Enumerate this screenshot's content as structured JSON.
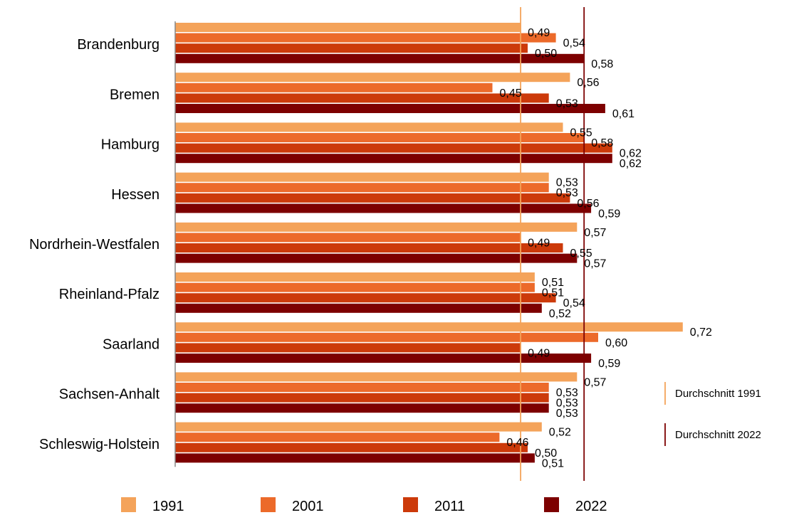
{
  "chart_data": {
    "type": "bar",
    "orientation": "horizontal",
    "categories": [
      "Brandenburg",
      "Bremen",
      "Hamburg",
      "Hessen",
      "Nordrhein-Westfalen",
      "Rheinland-Pfalz",
      "Saarland",
      "Sachsen-Anhalt",
      "Schleswig-Holstein"
    ],
    "series": [
      {
        "name": "1991",
        "color": "#f4a35a",
        "values": [
          0.49,
          0.56,
          0.55,
          0.53,
          0.57,
          0.51,
          0.72,
          0.57,
          0.52
        ],
        "labels": [
          "0,49",
          "0,56",
          "0,55",
          "0,53",
          "0,57",
          "0,51",
          "0,72",
          "0,57",
          "0,52"
        ]
      },
      {
        "name": "2001",
        "color": "#ec6a2a",
        "values": [
          0.54,
          0.45,
          0.58,
          0.53,
          0.49,
          0.51,
          0.6,
          0.53,
          0.46
        ],
        "labels": [
          "0,54",
          "0,45",
          "0,58",
          "0,53",
          "0,49",
          "0,51",
          "0,60",
          "0,53",
          "0,46"
        ]
      },
      {
        "name": "2011",
        "color": "#cc3a0a",
        "values": [
          0.5,
          0.53,
          0.62,
          0.56,
          0.55,
          0.54,
          0.49,
          0.53,
          0.5
        ],
        "labels": [
          "0,50",
          "0,53",
          "0,62",
          "0,56",
          "0,55",
          "0,54",
          "0,49",
          "0,53",
          "0,50"
        ]
      },
      {
        "name": "2022",
        "color": "#7d0000",
        "values": [
          0.58,
          0.61,
          0.62,
          0.59,
          0.57,
          0.52,
          0.59,
          0.53,
          0.51
        ],
        "labels": [
          "0,58",
          "0,61",
          "0,62",
          "0,59",
          "0,57",
          "0,52",
          "0,59",
          "0,53",
          "0,51"
        ]
      }
    ],
    "reference_lines": [
      {
        "name": "Durchschnitt 1991",
        "value": 0.49,
        "color": "#f4a35a"
      },
      {
        "name": "Durchschnitt 2022",
        "value": 0.58,
        "color": "#7d0000"
      }
    ],
    "xlim": [
      0.0,
      0.75
    ],
    "title": "",
    "xlabel": "",
    "ylabel": "",
    "legend_position": "bottom",
    "grid": false
  }
}
